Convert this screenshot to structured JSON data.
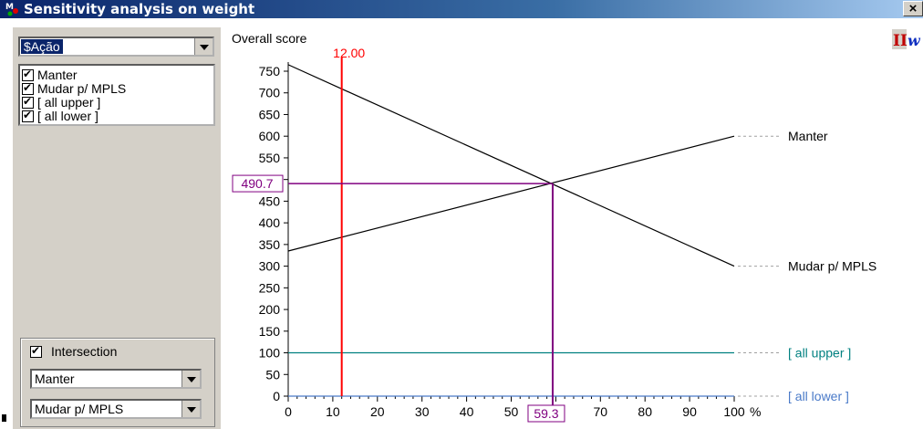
{
  "window": {
    "title": "Sensitivity analysis on weight",
    "close_label": "×"
  },
  "left_panel": {
    "criterion_select": "$Ação",
    "alternatives": [
      {
        "label": "Manter",
        "checked": true
      },
      {
        "label": "Mudar p/ MPLS",
        "checked": true
      },
      {
        "label": "[ all upper ]",
        "checked": true
      },
      {
        "label": "[ all lower ]",
        "checked": true
      }
    ],
    "intersection": {
      "label": "Intersection",
      "checked": true
    },
    "intersection_select_1": "Manter",
    "intersection_select_2": "Mudar p/ MPLS"
  },
  "toolbar": {
    "logo_text": "II",
    "logo_w": "w"
  },
  "chart_data": {
    "type": "line",
    "ylabel": "Overall score",
    "xlabel": "%",
    "xlim": [
      0,
      100
    ],
    "ylim": [
      0,
      775
    ],
    "x_ticks": [
      "0",
      "10",
      "20",
      "30",
      "40",
      "50",
      "60",
      "70",
      "80",
      "90",
      "100"
    ],
    "x_tick_values": [
      0,
      10,
      20,
      30,
      40,
      50,
      60,
      70,
      80,
      90,
      100
    ],
    "y_ticks": [
      "0",
      "50",
      "100",
      "150",
      "200",
      "250",
      "300",
      "350",
      "400",
      "450",
      "500",
      "550",
      "600",
      "650",
      "700",
      "750"
    ],
    "y_tick_values": [
      0,
      50,
      100,
      150,
      200,
      250,
      300,
      350,
      400,
      450,
      500,
      550,
      600,
      650,
      700,
      750
    ],
    "series": [
      {
        "name": "Manter",
        "x": [
          0,
          100
        ],
        "y": [
          335,
          600
        ],
        "color": "#000000"
      },
      {
        "name": "Mudar p/ MPLS",
        "x": [
          0,
          100
        ],
        "y": [
          765,
          300
        ],
        "color": "#000000"
      },
      {
        "name": "[ all upper ]",
        "x": [
          0,
          100
        ],
        "y": [
          100,
          100
        ],
        "color": "#008080"
      },
      {
        "name": "[ all lower ]",
        "x": [
          0,
          100
        ],
        "y": [
          0,
          0
        ],
        "color": "#4a7ac8"
      }
    ],
    "current_weight": {
      "value": 12,
      "label": "12.00",
      "color": "#ff0000"
    },
    "intersection": {
      "x": 59.3,
      "y": 490.7,
      "x_label": "59.3",
      "y_label": "490.7",
      "color": "#800080"
    }
  },
  "colors": {
    "accent": "#0a246a",
    "panel": "#d4d0c8"
  }
}
